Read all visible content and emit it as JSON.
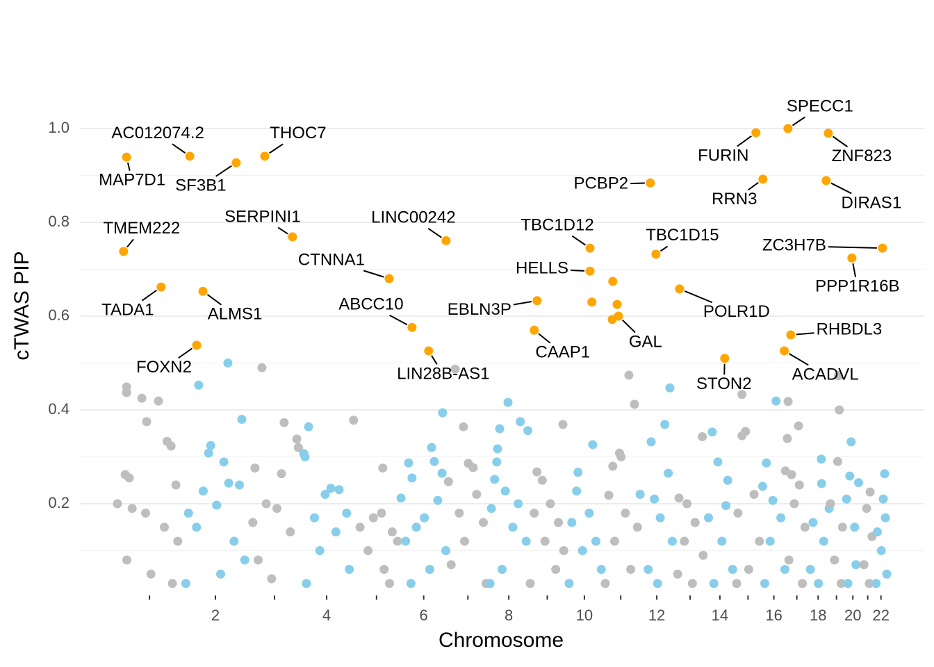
{
  "chart_data": {
    "type": "scatter",
    "x_label": "Chromosome",
    "y_label": "cTWAS PIP",
    "xlim": [
      -135,
      3015
    ],
    "ylim": [
      0,
      1.1
    ],
    "yticks": [
      0.2,
      0.4,
      0.6,
      0.8,
      {
        "value": 1,
        "label": "1.0"
      }
    ],
    "yticks_minor": [
      0.1,
      0.3,
      0.5,
      0.7,
      0.9
    ],
    "xticks": [
      {
        "value": 124.5,
        "label": null
      },
      {
        "value": 370.5,
        "label": "2"
      },
      {
        "value": 591,
        "label": null
      },
      {
        "value": 785.5,
        "label": "4"
      },
      {
        "value": 971.5,
        "label": null
      },
      {
        "value": 1147.5,
        "label": "6"
      },
      {
        "value": 1312.5,
        "label": null
      },
      {
        "value": 1465,
        "label": "8"
      },
      {
        "value": 1608.5,
        "label": null
      },
      {
        "value": 1747,
        "label": "10"
      },
      {
        "value": 1882.5,
        "label": null
      },
      {
        "value": 2017,
        "label": "12"
      },
      {
        "value": 2141.5,
        "label": null
      },
      {
        "value": 2252.5,
        "label": "14"
      },
      {
        "value": 2357.5,
        "label": null
      },
      {
        "value": 2454,
        "label": "16"
      },
      {
        "value": 2539.5,
        "label": null
      },
      {
        "value": 2619,
        "label": "18"
      },
      {
        "value": 2687.5,
        "label": null
      },
      {
        "value": 2748.5,
        "label": "20"
      },
      {
        "value": 2804,
        "label": null
      },
      {
        "value": 2853.5,
        "label": "22"
      }
    ],
    "grid": true,
    "series": [
      {
        "color": "#bebebe",
        "x": [
          39,
          39,
          96,
          158,
          114,
          205,
          190,
          34,
          49,
          223,
          5,
          60,
          110,
          180,
          230,
          40,
          130,
          210
        ],
        "values": [
          0.449,
          0.437,
          0.425,
          0.419,
          0.375,
          0.323,
          0.333,
          0.262,
          0.255,
          0.24,
          0.2,
          0.19,
          0.18,
          0.15,
          0.12,
          0.08,
          0.05,
          0.03
        ]
      },
      {
        "color": "#87ceeb",
        "x": [
          308,
          417,
          469,
          345,
          353,
          402,
          420,
          325,
          375,
          460,
          270,
          300,
          440,
          480,
          390,
          260
        ],
        "values": [
          0.453,
          0.5,
          0.38,
          0.308,
          0.324,
          0.289,
          0.244,
          0.227,
          0.197,
          0.24,
          0.18,
          0.15,
          0.12,
          0.08,
          0.05,
          0.03
        ]
      },
      {
        "color": "#bebebe",
        "x": [
          544,
          518,
          627,
          674,
          617,
          680,
          560,
          600,
          510,
          650,
          530,
          580
        ],
        "values": [
          0.49,
          0.276,
          0.373,
          0.338,
          0.264,
          0.32,
          0.2,
          0.19,
          0.16,
          0.14,
          0.08,
          0.04
        ]
      },
      {
        "color": "#87ceeb",
        "x": [
          718,
          700,
          705,
          801,
          832,
          780,
          860,
          740,
          820,
          760,
          870,
          710
        ],
        "values": [
          0.364,
          0.307,
          0.3,
          0.233,
          0.23,
          0.22,
          0.18,
          0.17,
          0.14,
          0.1,
          0.06,
          0.03
        ]
      },
      {
        "color": "#bebebe",
        "x": [
          886,
          995,
          960,
          990,
          910,
          1030,
          1050,
          940,
          1000,
          1020
        ],
        "values": [
          0.378,
          0.276,
          0.17,
          0.18,
          0.15,
          0.14,
          0.12,
          0.1,
          0.06,
          0.03
        ]
      },
      {
        "color": "#87ceeb",
        "x": [
          1218,
          1177,
          1187,
          1216,
          1091,
          1104,
          1200,
          1063,
          1150,
          1120,
          1080,
          1230,
          1170,
          1100
        ],
        "values": [
          0.394,
          0.32,
          0.29,
          0.265,
          0.287,
          0.255,
          0.207,
          0.212,
          0.17,
          0.15,
          0.12,
          0.1,
          0.06,
          0.03
        ]
      },
      {
        "color": "#bebebe",
        "x": [
          1265,
          1296,
          1314,
          1332,
          1240,
          1345,
          1280,
          1370,
          1300,
          1250,
          1380
        ],
        "values": [
          0.487,
          0.364,
          0.286,
          0.277,
          0.247,
          0.22,
          0.18,
          0.16,
          0.12,
          0.07,
          0.03
        ]
      },
      {
        "color": "#87ceeb",
        "x": [
          1462,
          1431,
          1423,
          1420,
          1412,
          1452,
          1400,
          1500,
          1480,
          1530,
          1440,
          1395,
          1508,
          1536
        ],
        "values": [
          0.416,
          0.36,
          0.317,
          0.289,
          0.252,
          0.227,
          0.19,
          0.2,
          0.15,
          0.12,
          0.06,
          0.03,
          0.375,
          0.356
        ]
      },
      {
        "color": "#bebebe",
        "x": [
          1570,
          1590,
          1620,
          1560,
          1650,
          1600,
          1670,
          1640,
          1545,
          1667
        ],
        "values": [
          0.268,
          0.25,
          0.2,
          0.18,
          0.16,
          0.12,
          0.1,
          0.06,
          0.03,
          0.369
        ]
      },
      {
        "color": "#87ceeb",
        "x": [
          1778,
          1723,
          1718,
          1765,
          1700,
          1790,
          1740,
          1810,
          1690
        ],
        "values": [
          0.326,
          0.267,
          0.227,
          0.18,
          0.16,
          0.12,
          0.1,
          0.06,
          0.03
        ]
      },
      {
        "color": "#bebebe",
        "x": [
          1913,
          1934,
          1878,
          1884,
          1853,
          1838,
          1900,
          1945,
          1860,
          1920,
          1825
        ],
        "values": [
          0.474,
          0.412,
          0.308,
          0.3,
          0.28,
          0.218,
          0.18,
          0.15,
          0.12,
          0.06,
          0.03
        ]
      },
      {
        "color": "#87ceeb",
        "x": [
          2066,
          2047,
          1996,
          2060,
          1955,
          2008,
          2030,
          2075,
          1985,
          2020
        ],
        "values": [
          0.447,
          0.369,
          0.332,
          0.265,
          0.22,
          0.21,
          0.17,
          0.12,
          0.06,
          0.03
        ]
      },
      {
        "color": "#bebebe",
        "x": [
          2187,
          2100,
          2130,
          2160,
          2120,
          2190,
          2095,
          2150
        ],
        "values": [
          0.343,
          0.212,
          0.2,
          0.16,
          0.12,
          0.09,
          0.05,
          0.03
        ]
      },
      {
        "color": "#87ceeb",
        "x": [
          2224,
          2245,
          2282,
          2275,
          2210,
          2260,
          2300,
          2230
        ],
        "values": [
          0.353,
          0.289,
          0.25,
          0.196,
          0.17,
          0.12,
          0.06,
          0.03
        ]
      },
      {
        "color": "#bebebe",
        "x": [
          2335,
          2348,
          2335,
          2380,
          2320,
          2400,
          2360,
          2315
        ],
        "values": [
          0.433,
          0.354,
          0.345,
          0.22,
          0.18,
          0.12,
          0.06,
          0.03
        ]
      },
      {
        "color": "#87ceeb",
        "x": [
          2462,
          2426,
          2412,
          2450,
          2480,
          2440,
          2495,
          2420
        ],
        "values": [
          0.419,
          0.287,
          0.237,
          0.207,
          0.17,
          0.12,
          0.06,
          0.03
        ]
      },
      {
        "color": "#bebebe",
        "x": [
          2507,
          2546,
          2504,
          2497,
          2520,
          2549,
          2530,
          2570,
          2510,
          2560
        ],
        "values": [
          0.418,
          0.366,
          0.339,
          0.27,
          0.262,
          0.24,
          0.2,
          0.15,
          0.08,
          0.03
        ]
      },
      {
        "color": "#87ceeb",
        "x": [
          2631,
          2632,
          2660,
          2600,
          2640,
          2590,
          2620
        ],
        "values": [
          0.295,
          0.243,
          0.19,
          0.16,
          0.12,
          0.06,
          0.03
        ]
      },
      {
        "color": "#bebebe",
        "x": [
          2695,
          2698,
          2692,
          2665,
          2710,
          2680,
          2705
        ],
        "values": [
          0.473,
          0.4,
          0.29,
          0.2,
          0.15,
          0.08,
          0.03
        ]
      },
      {
        "color": "#87ceeb",
        "x": [
          2742,
          2737,
          2770,
          2725,
          2755,
          2760,
          2730
        ],
        "values": [
          0.332,
          0.259,
          0.245,
          0.21,
          0.15,
          0.07,
          0.03
        ]
      },
      {
        "color": "#bebebe",
        "x": [
          2813,
          2800,
          2820,
          2790,
          2810
        ],
        "values": [
          0.225,
          0.19,
          0.13,
          0.07,
          0.03
        ]
      },
      {
        "color": "#87ceeb",
        "x": [
          2867,
          2862,
          2870,
          2840,
          2855,
          2875,
          2835
        ],
        "values": [
          0.264,
          0.21,
          0.17,
          0.14,
          0.1,
          0.05,
          0.03
        ]
      },
      {
        "color": "#ffa500",
        "x": [
          39,
          275,
          448,
          554.5,
          28,
          658,
          1231,
          168,
          324,
          1018.5,
          1104,
          1166,
          300.5,
          1768,
          1768,
          1570.5,
          1560,
          1874,
          1993,
          2014,
          2102,
          2270.5,
          2387,
          2506.5,
          2657,
          2413,
          2649,
          2859,
          2745,
          2517,
          2493,
          1853,
          1775,
          1869,
          1851
        ],
        "values": [
          0.939,
          0.941,
          0.927,
          0.941,
          0.738,
          0.769,
          0.761,
          0.662,
          0.653,
          0.68,
          0.576,
          0.526,
          0.538,
          0.745,
          0.696,
          0.633,
          0.57,
          0.6,
          0.884,
          0.732,
          0.658,
          0.51,
          0.991,
          1.0,
          0.99,
          0.892,
          0.889,
          0.745,
          0.724,
          0.56,
          0.526,
          0.674,
          0.63,
          0.625,
          0.593
        ],
        "labels": [
          "MAP7D1",
          "AC012074.2",
          "SF3B1",
          "THOC7",
          "TMEM222",
          "SERPINI1",
          "LINC00242",
          "TADA1",
          "ALMS1",
          "CTNNA1",
          "ABCC10",
          "LIN28B-AS1",
          "FOXN2",
          "TBC1D12",
          "HELLS",
          "EBLN3P",
          "CAAP1",
          "GAL",
          "PCBP2",
          "TBC1D15",
          "POLR1D",
          "STON2",
          "FURIN",
          "SPECC1",
          "ZNF823",
          "RRN3",
          "DIRAS1",
          "ZC3H7B",
          "PPP1R16B",
          "RHBDL3",
          "ACADVL",
          null,
          null,
          null,
          null
        ]
      }
    ]
  }
}
